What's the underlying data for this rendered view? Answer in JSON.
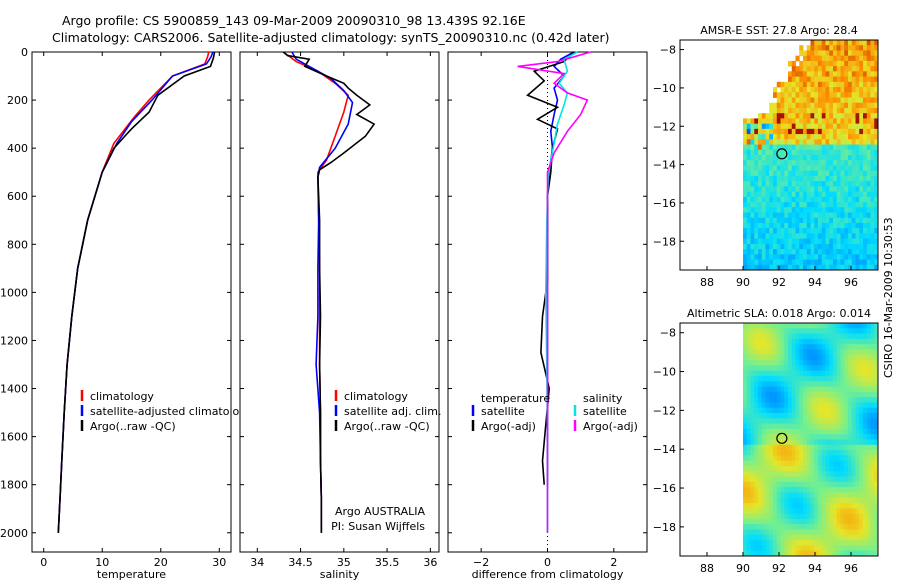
{
  "header": {
    "line1": "Argo profile: CS 5900859_143 09-Mar-2009 20090310_98 13.439S 92.16E",
    "line2": "Climatology: CARS2006. Satellite-adjusted climatology: synTS_20090310.nc (0.42d later)"
  },
  "side_label": "CSIRO 16-Mar-2009 10:30:53",
  "colors": {
    "climatology": "#ff0000",
    "satellite": "#0000ff",
    "argo": "#000000",
    "sat_diff": "#00e5e5",
    "argo_diff": "#ff00ff"
  },
  "chart_data": [
    {
      "type": "line",
      "xlabel": "temperature",
      "xlim": [
        -2,
        32
      ],
      "ylim": [
        0,
        2080
      ],
      "xticks": [
        0,
        10,
        20,
        30
      ],
      "yticks": [
        0,
        200,
        400,
        600,
        800,
        1000,
        1200,
        1400,
        1600,
        1800,
        2000
      ],
      "legend": [
        {
          "label": "climatology",
          "color_key": "climatology"
        },
        {
          "label": "satellite-adjusted climatology",
          "color_key": "satellite"
        },
        {
          "label": "Argo(..raw -QC)",
          "color_key": "argo"
        }
      ],
      "series": [
        {
          "name": "climatology",
          "color_key": "climatology",
          "points": [
            [
              28.2,
              0
            ],
            [
              28.0,
              20
            ],
            [
              27.5,
              50
            ],
            [
              22,
              100
            ],
            [
              18,
              200
            ],
            [
              15.5,
              270
            ],
            [
              12,
              380
            ],
            [
              10,
              500
            ],
            [
              7.5,
              700
            ],
            [
              5.8,
              900
            ],
            [
              4.8,
              1100
            ],
            [
              4.0,
              1300
            ],
            [
              3.5,
              1500
            ],
            [
              3.1,
              1700
            ],
            [
              2.8,
              1850
            ],
            [
              2.5,
              2000
            ]
          ]
        },
        {
          "name": "satellite-adjusted climatology",
          "color_key": "satellite",
          "points": [
            [
              28.9,
              0
            ],
            [
              28.6,
              20
            ],
            [
              27.8,
              50
            ],
            [
              22,
              100
            ],
            [
              18.5,
              200
            ],
            [
              15,
              290
            ],
            [
              12.5,
              380
            ],
            [
              10,
              500
            ],
            [
              7.5,
              700
            ],
            [
              5.8,
              900
            ],
            [
              4.8,
              1100
            ],
            [
              4.0,
              1300
            ],
            [
              3.5,
              1500
            ],
            [
              3.1,
              1700
            ],
            [
              2.8,
              1850
            ],
            [
              2.5,
              2000
            ]
          ]
        },
        {
          "name": "Argo(..raw -QC)",
          "color_key": "argo",
          "points": [
            [
              29.2,
              0
            ],
            [
              29.0,
              25
            ],
            [
              28.5,
              60
            ],
            [
              24,
              100
            ],
            [
              19.5,
              180
            ],
            [
              18,
              250
            ],
            [
              15,
              320
            ],
            [
              12,
              400
            ],
            [
              10,
              500
            ],
            [
              7.5,
              700
            ],
            [
              5.8,
              900
            ],
            [
              4.8,
              1100
            ],
            [
              4.0,
              1300
            ],
            [
              3.5,
              1500
            ],
            [
              3.1,
              1700
            ],
            [
              2.8,
              1850
            ],
            [
              2.5,
              2000
            ]
          ]
        }
      ]
    },
    {
      "type": "line",
      "xlabel": "salinity",
      "xlim": [
        33.8,
        36.1
      ],
      "ylim": [
        0,
        2080
      ],
      "xticks": [
        34,
        34.5,
        35,
        35.5,
        36
      ],
      "yticks": [
        0,
        200,
        400,
        600,
        800,
        1000,
        1200,
        1400,
        1600,
        1800,
        2000
      ],
      "legend": [
        {
          "label": "climatology",
          "color_key": "climatology"
        },
        {
          "label": "satellite adj. clim.",
          "color_key": "satellite"
        },
        {
          "label": "Argo(..raw -QC)",
          "color_key": "argo"
        }
      ],
      "annotation": [
        "Argo AUSTRALIA",
        "PI: Susan Wijffels"
      ],
      "series": [
        {
          "name": "climatology",
          "color_key": "climatology",
          "points": [
            [
              34.3,
              0
            ],
            [
              34.45,
              40
            ],
            [
              34.7,
              80
            ],
            [
              34.9,
              130
            ],
            [
              35.05,
              180
            ],
            [
              35.0,
              250
            ],
            [
              34.9,
              350
            ],
            [
              34.8,
              450
            ],
            [
              34.7,
              500
            ],
            [
              34.71,
              700
            ],
            [
              34.72,
              900
            ],
            [
              34.72,
              1100
            ],
            [
              34.72,
              1300
            ],
            [
              34.73,
              1500
            ],
            [
              34.73,
              1700
            ],
            [
              34.74,
              1850
            ],
            [
              34.74,
              2000
            ]
          ]
        },
        {
          "name": "satellite adj. clim.",
          "color_key": "satellite",
          "points": [
            [
              34.4,
              0
            ],
            [
              34.45,
              30
            ],
            [
              34.6,
              60
            ],
            [
              34.85,
              110
            ],
            [
              35.0,
              160
            ],
            [
              35.1,
              210
            ],
            [
              35.05,
              300
            ],
            [
              34.9,
              400
            ],
            [
              34.72,
              480
            ],
            [
              34.7,
              520
            ],
            [
              34.71,
              700
            ],
            [
              34.7,
              900
            ],
            [
              34.7,
              1100
            ],
            [
              34.68,
              1300
            ],
            [
              34.72,
              1500
            ],
            [
              34.73,
              1700
            ],
            [
              34.74,
              1850
            ],
            [
              34.74,
              2000
            ]
          ]
        },
        {
          "name": "Argo(..raw -QC)",
          "color_key": "argo",
          "points": [
            [
              34.3,
              0
            ],
            [
              34.35,
              15
            ],
            [
              34.6,
              30
            ],
            [
              34.55,
              60
            ],
            [
              34.8,
              100
            ],
            [
              35.0,
              130
            ],
            [
              35.05,
              150
            ],
            [
              35.15,
              180
            ],
            [
              35.3,
              220
            ],
            [
              35.15,
              260
            ],
            [
              35.35,
              300
            ],
            [
              35.25,
              350
            ],
            [
              35.0,
              420
            ],
            [
              34.85,
              460
            ],
            [
              34.72,
              490
            ],
            [
              34.7,
              520
            ],
            [
              34.72,
              700
            ],
            [
              34.72,
              900
            ],
            [
              34.73,
              1100
            ],
            [
              34.72,
              1300
            ],
            [
              34.73,
              1500
            ],
            [
              34.73,
              1700
            ],
            [
              34.74,
              1850
            ],
            [
              34.74,
              2000
            ]
          ]
        }
      ]
    },
    {
      "type": "line",
      "xlabel": "difference from climatology",
      "xlim": [
        -3,
        3
      ],
      "ylim": [
        0,
        2080
      ],
      "xticks": [
        -2,
        0,
        2
      ],
      "yticks": [
        0,
        200,
        400,
        600,
        800,
        1000,
        1200,
        1400,
        1600,
        1800,
        2000
      ],
      "legend": [
        {
          "group": "temperature",
          "label": "satellite",
          "color_key": "satellite"
        },
        {
          "group": "temperature",
          "label": "Argo(-adj)",
          "color_key": "argo"
        },
        {
          "group": "salinity",
          "label": "satellite",
          "color_key": "sat_diff"
        },
        {
          "group": "salinity",
          "label": "Argo(-adj)",
          "color_key": "argo_diff"
        }
      ],
      "series": [
        {
          "name": "temperature satellite",
          "color_key": "satellite",
          "points": [
            [
              0.8,
              0
            ],
            [
              0.4,
              30
            ],
            [
              0.2,
              60
            ],
            [
              0.5,
              100
            ],
            [
              0.2,
              150
            ],
            [
              0.3,
              200
            ],
            [
              0.2,
              260
            ],
            [
              0.1,
              330
            ],
            [
              0.15,
              400
            ],
            [
              0.05,
              500
            ],
            [
              0,
              600
            ],
            [
              0,
              800
            ],
            [
              0,
              1000
            ],
            [
              0,
              1200
            ],
            [
              0,
              1400
            ],
            [
              0,
              1600
            ],
            [
              0,
              1800
            ]
          ]
        },
        {
          "name": "temperature Argo(-adj)",
          "color_key": "argo",
          "points": [
            [
              0.8,
              0
            ],
            [
              0.5,
              40
            ],
            [
              -0.4,
              80
            ],
            [
              -0.1,
              120
            ],
            [
              -0.6,
              180
            ],
            [
              0.3,
              230
            ],
            [
              -0.3,
              280
            ],
            [
              0.3,
              320
            ],
            [
              0.15,
              400
            ],
            [
              0.1,
              500
            ],
            [
              0,
              600
            ],
            [
              0,
              800
            ],
            [
              0,
              950
            ],
            [
              -0.15,
              1100
            ],
            [
              -0.2,
              1250
            ],
            [
              0.05,
              1400
            ],
            [
              -0.05,
              1550
            ],
            [
              -0.15,
              1700
            ],
            [
              -0.1,
              1800
            ]
          ]
        },
        {
          "name": "salinity satellite",
          "color_key": "sat_diff",
          "points": [
            [
              0.9,
              0
            ],
            [
              0.5,
              30
            ],
            [
              0.6,
              80
            ],
            [
              0.35,
              130
            ],
            [
              0.6,
              170
            ],
            [
              0.5,
              220
            ],
            [
              0.3,
              300
            ],
            [
              0.2,
              380
            ],
            [
              0.1,
              450
            ],
            [
              0.02,
              520
            ],
            [
              -0.02,
              700
            ],
            [
              -0.05,
              1000
            ],
            [
              -0.02,
              1300
            ],
            [
              0,
              1600
            ],
            [
              0,
              1800
            ],
            [
              0,
              2000
            ]
          ]
        },
        {
          "name": "salinity Argo(-adj)",
          "color_key": "argo_diff",
          "points": [
            [
              1.3,
              0
            ],
            [
              0.8,
              20
            ],
            [
              0.3,
              40
            ],
            [
              -0.9,
              60
            ],
            [
              0.5,
              90
            ],
            [
              0.2,
              130
            ],
            [
              0.6,
              170
            ],
            [
              1.2,
              200
            ],
            [
              1.0,
              260
            ],
            [
              0.6,
              330
            ],
            [
              0.2,
              420
            ],
            [
              0,
              500
            ],
            [
              0,
              1000
            ],
            [
              0,
              1400
            ],
            [
              0,
              2000
            ]
          ]
        }
      ]
    },
    {
      "type": "heatmap",
      "title": "AMSR-E SST: 27.8 Argo: 28.4",
      "xlim": [
        86.5,
        97.5
      ],
      "ylim": [
        -19.5,
        -7.5
      ],
      "xticks": [
        88,
        90,
        92,
        94,
        96
      ],
      "yticks": [
        -8,
        -10,
        -12,
        -14,
        -16,
        -18
      ],
      "marker": {
        "lon": 92.16,
        "lat": -13.439
      }
    },
    {
      "type": "heatmap",
      "title": "Altimetric SLA: 0.018 Argo: 0.014",
      "xlim": [
        86.5,
        97.5
      ],
      "ylim": [
        -19.5,
        -7.5
      ],
      "xticks": [
        88,
        90,
        92,
        94,
        96
      ],
      "yticks": [
        -8,
        -10,
        -12,
        -14,
        -16,
        -18
      ],
      "marker": {
        "lon": 92.16,
        "lat": -13.439
      }
    }
  ]
}
